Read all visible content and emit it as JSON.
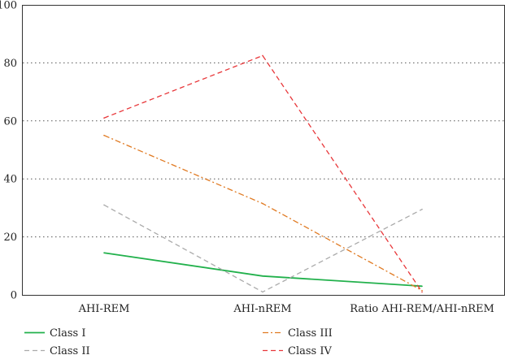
{
  "chart_data": {
    "type": "line",
    "categories": [
      "AHI-REM",
      "AHI-nREM",
      "Ratio AHI-REM/AHI-nREM"
    ],
    "ylim": [
      0,
      100
    ],
    "yticks": [
      0,
      20,
      40,
      60,
      80,
      100
    ],
    "grid": "horizontal dotted",
    "legend_position": "bottom",
    "series": [
      {
        "name": "Class I",
        "values": [
          14.5,
          6.5,
          3
        ],
        "color": "#22b14c",
        "dash": "solid"
      },
      {
        "name": "Class II",
        "values": [
          31,
          1,
          29.5
        ],
        "color": "#aaaaaa",
        "dash": "dashed"
      },
      {
        "name": "Class III",
        "values": [
          55,
          31.5,
          1.5
        ],
        "color": "#e07a22",
        "dash": "dash-dot"
      },
      {
        "name": "Class IV",
        "values": [
          61,
          82.5,
          1
        ],
        "color": "#e8373a",
        "dash": "dashed"
      }
    ]
  }
}
